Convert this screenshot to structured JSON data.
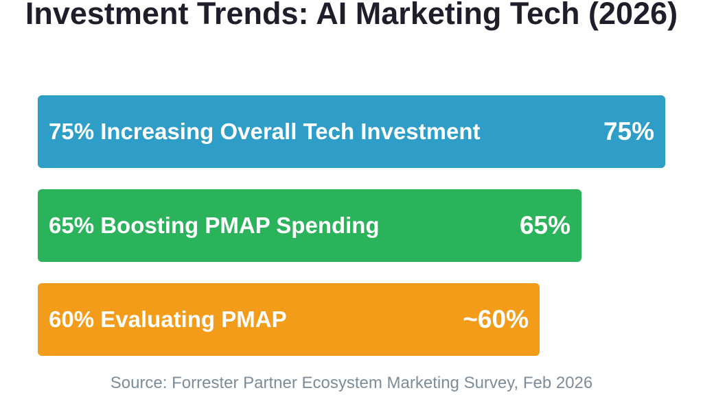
{
  "title": "Investment Trends: AI Marketing Tech (2026)",
  "source": "Source: Forrester Partner Ecosystem Marketing Survey, Feb 2026",
  "chart_data": {
    "type": "bar",
    "orientation": "horizontal",
    "title": "Investment Trends: AI Marketing Tech (2026)",
    "xlim": [
      0,
      100
    ],
    "grid": false,
    "legend": "none",
    "bars": [
      {
        "label": "75% Increasing Overall Tech Investment",
        "value": 75,
        "value_label": "75%",
        "color": "#2e9ec9"
      },
      {
        "label": "65% Boosting PMAP Spending",
        "value": 65,
        "value_label": "65%",
        "color": "#2bb35c"
      },
      {
        "label": "60% Evaluating PMAP",
        "value": 60,
        "value_label": "~60%",
        "color": "#f39c1a"
      }
    ]
  }
}
